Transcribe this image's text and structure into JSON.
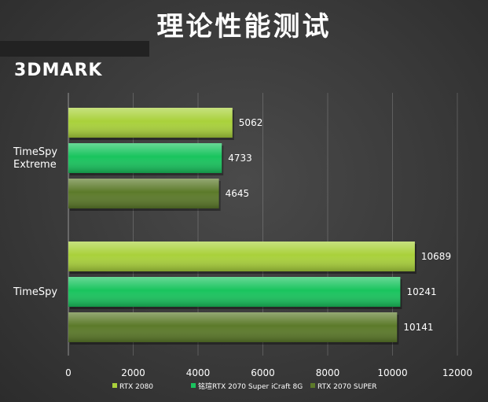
{
  "header": {
    "title": "理论性能测试",
    "subtitle": "3DMARK"
  },
  "colors": {
    "RTX 2080": "#a9d13b",
    "铭瑄RTX 2070 Super iCraft 8G": "#19c45e",
    "RTX 2070 SUPER": "#5c7a2a"
  },
  "chart_data": {
    "type": "bar",
    "orientation": "horizontal",
    "categories": [
      "TimeSpy Extreme",
      "TimeSpy"
    ],
    "category_lines": [
      [
        "TimeSpy",
        "Extreme"
      ],
      [
        "TimeSpy"
      ]
    ],
    "series": [
      {
        "name": "RTX 2080",
        "values": [
          5062,
          10689
        ]
      },
      {
        "name": "铭瑄RTX 2070 Super iCraft 8G",
        "values": [
          4733,
          10241
        ]
      },
      {
        "name": "RTX 2070 SUPER",
        "values": [
          4645,
          10141
        ]
      }
    ],
    "xlim": [
      0,
      12000
    ],
    "xticks": [
      0,
      2000,
      4000,
      6000,
      8000,
      10000,
      12000
    ],
    "grid": true,
    "legend_position": "bottom"
  }
}
